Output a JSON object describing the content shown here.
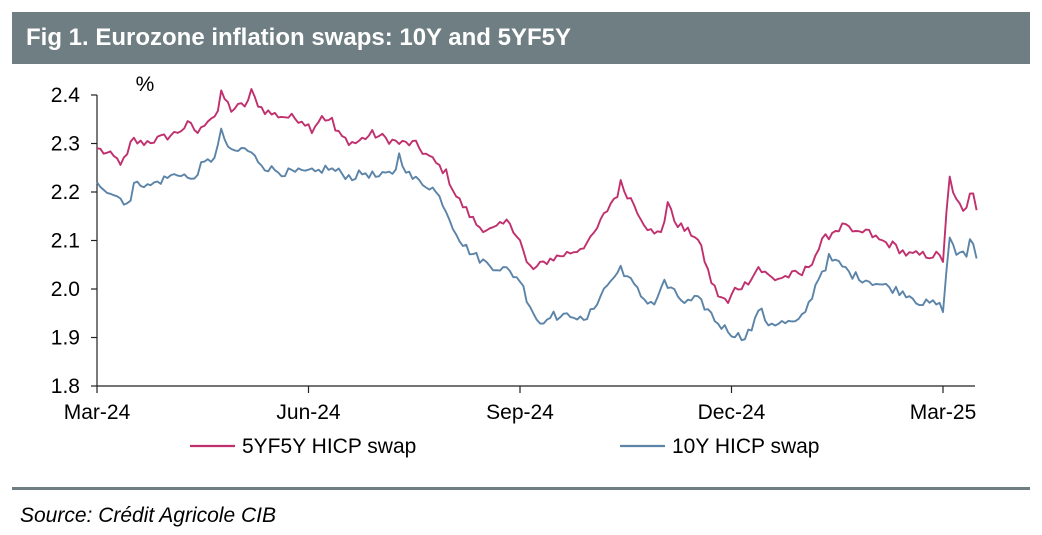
{
  "title": "Fig 1. Eurozone inflation swaps: 10Y and 5YF5Y",
  "source": "Source: Crédit Agricole CIB",
  "colors": {
    "title_bg": "#6e7e82",
    "series_5y5y": "#c0306e",
    "series_10y": "#5b84a8"
  },
  "chart_data": {
    "type": "line",
    "ylabel": "%",
    "ylim": [
      1.8,
      2.4
    ],
    "yticks": [
      "1.8",
      "1.9",
      "2.0",
      "2.1",
      "2.2",
      "2.3",
      "2.4"
    ],
    "xlim": [
      0,
      12.8
    ],
    "xticks": [
      {
        "label": "Mar-24",
        "x": 0
      },
      {
        "label": "Jun-24",
        "x": 3
      },
      {
        "label": "Sep-24",
        "x": 6
      },
      {
        "label": "Dec-24",
        "x": 9
      },
      {
        "label": "Mar-25",
        "x": 12
      }
    ],
    "legend": [
      "5YF5Y HICP swap",
      "10Y HICP swap"
    ],
    "series": [
      {
        "name": "5YF5Y HICP swap",
        "color": "#c0306e",
        "anchors": [
          [
            0,
            2.29
          ],
          [
            0.25,
            2.27
          ],
          [
            0.35,
            2.26
          ],
          [
            0.42,
            2.27
          ],
          [
            0.5,
            2.31
          ],
          [
            0.6,
            2.3
          ],
          [
            0.9,
            2.31
          ],
          [
            1.1,
            2.32
          ],
          [
            1.3,
            2.34
          ],
          [
            1.45,
            2.32
          ],
          [
            1.55,
            2.35
          ],
          [
            1.7,
            2.36
          ],
          [
            1.78,
            2.4
          ],
          [
            1.9,
            2.37
          ],
          [
            2.1,
            2.38
          ],
          [
            2.2,
            2.4
          ],
          [
            2.35,
            2.37
          ],
          [
            2.5,
            2.36
          ],
          [
            2.9,
            2.35
          ],
          [
            3.05,
            2.33
          ],
          [
            3.2,
            2.36
          ],
          [
            3.35,
            2.33
          ],
          [
            3.5,
            2.31
          ],
          [
            3.65,
            2.3
          ],
          [
            3.9,
            2.32
          ],
          [
            4.1,
            2.31
          ],
          [
            4.3,
            2.3
          ],
          [
            4.5,
            2.3
          ],
          [
            4.65,
            2.28
          ],
          [
            4.8,
            2.26
          ],
          [
            4.95,
            2.24
          ],
          [
            5.1,
            2.19
          ],
          [
            5.25,
            2.16
          ],
          [
            5.4,
            2.13
          ],
          [
            5.6,
            2.12
          ],
          [
            5.85,
            2.14
          ],
          [
            6.0,
            2.1
          ],
          [
            6.1,
            2.05
          ],
          [
            6.2,
            2.04
          ],
          [
            6.4,
            2.06
          ],
          [
            6.6,
            2.07
          ],
          [
            6.8,
            2.08
          ],
          [
            7.0,
            2.1
          ],
          [
            7.15,
            2.14
          ],
          [
            7.3,
            2.18
          ],
          [
            7.45,
            2.21
          ],
          [
            7.6,
            2.18
          ],
          [
            7.75,
            2.14
          ],
          [
            7.9,
            2.11
          ],
          [
            8.0,
            2.12
          ],
          [
            8.1,
            2.17
          ],
          [
            8.2,
            2.14
          ],
          [
            8.35,
            2.12
          ],
          [
            8.5,
            2.11
          ],
          [
            8.6,
            2.07
          ],
          [
            8.7,
            2.02
          ],
          [
            8.8,
            1.99
          ],
          [
            8.95,
            1.97
          ],
          [
            9.05,
            2.0
          ],
          [
            9.2,
            2.01
          ],
          [
            9.3,
            2.03
          ],
          [
            9.4,
            2.04
          ],
          [
            9.6,
            2.02
          ],
          [
            9.9,
            2.03
          ],
          [
            10.0,
            2.03
          ],
          [
            10.15,
            2.06
          ],
          [
            10.3,
            2.1
          ],
          [
            10.45,
            2.12
          ],
          [
            10.6,
            2.13
          ],
          [
            10.75,
            2.11
          ],
          [
            10.9,
            2.12
          ],
          [
            11.1,
            2.1
          ],
          [
            11.3,
            2.09
          ],
          [
            11.5,
            2.07
          ],
          [
            11.7,
            2.07
          ],
          [
            11.9,
            2.07
          ],
          [
            12.0,
            2.06
          ],
          [
            12.08,
            2.23
          ],
          [
            12.15,
            2.19
          ],
          [
            12.25,
            2.17
          ],
          [
            12.35,
            2.16
          ],
          [
            12.4,
            2.21
          ],
          [
            12.48,
            2.16
          ]
        ],
        "spikes": [
          [
            1.78,
            0.01
          ],
          [
            2.2,
            0.008
          ],
          [
            3.35,
            0.02
          ],
          [
            7.45,
            0.012
          ],
          [
            8.1,
            0.012
          ],
          [
            9.4,
            0.008
          ],
          [
            10.6,
            0.01
          ],
          [
            12.08,
            0.004
          ]
        ]
      },
      {
        "name": "10Y HICP swap",
        "color": "#5b84a8",
        "anchors": [
          [
            0,
            2.22
          ],
          [
            0.2,
            2.2
          ],
          [
            0.4,
            2.18
          ],
          [
            0.48,
            2.18
          ],
          [
            0.55,
            2.23
          ],
          [
            0.7,
            2.21
          ],
          [
            1.0,
            2.23
          ],
          [
            1.2,
            2.24
          ],
          [
            1.35,
            2.22
          ],
          [
            1.45,
            2.25
          ],
          [
            1.65,
            2.27
          ],
          [
            1.78,
            2.32
          ],
          [
            1.9,
            2.28
          ],
          [
            2.1,
            2.29
          ],
          [
            2.25,
            2.27
          ],
          [
            2.4,
            2.25
          ],
          [
            2.65,
            2.24
          ],
          [
            2.9,
            2.24
          ],
          [
            3.1,
            2.24
          ],
          [
            3.25,
            2.25
          ],
          [
            3.45,
            2.24
          ],
          [
            3.6,
            2.23
          ],
          [
            3.8,
            2.24
          ],
          [
            4.0,
            2.23
          ],
          [
            4.2,
            2.24
          ],
          [
            4.3,
            2.27
          ],
          [
            4.45,
            2.23
          ],
          [
            4.6,
            2.22
          ],
          [
            4.75,
            2.21
          ],
          [
            4.9,
            2.18
          ],
          [
            5.05,
            2.13
          ],
          [
            5.2,
            2.09
          ],
          [
            5.35,
            2.07
          ],
          [
            5.55,
            2.05
          ],
          [
            5.8,
            2.04
          ],
          [
            6.0,
            2.02
          ],
          [
            6.1,
            1.98
          ],
          [
            6.2,
            1.95
          ],
          [
            6.3,
            1.92
          ],
          [
            6.4,
            1.95
          ],
          [
            6.6,
            1.94
          ],
          [
            6.75,
            1.95
          ],
          [
            6.9,
            1.93
          ],
          [
            7.0,
            1.95
          ],
          [
            7.15,
            1.99
          ],
          [
            7.3,
            2.02
          ],
          [
            7.45,
            2.04
          ],
          [
            7.6,
            2.01
          ],
          [
            7.75,
            1.98
          ],
          [
            7.9,
            1.97
          ],
          [
            8.05,
            2.01
          ],
          [
            8.2,
            1.99
          ],
          [
            8.35,
            1.97
          ],
          [
            8.5,
            1.98
          ],
          [
            8.65,
            1.96
          ],
          [
            8.8,
            1.93
          ],
          [
            9.0,
            1.91
          ],
          [
            9.15,
            1.9
          ],
          [
            9.3,
            1.92
          ],
          [
            9.4,
            1.96
          ],
          [
            9.5,
            1.93
          ],
          [
            9.7,
            1.93
          ],
          [
            9.95,
            1.93
          ],
          [
            10.1,
            1.97
          ],
          [
            10.25,
            2.03
          ],
          [
            10.4,
            2.06
          ],
          [
            10.55,
            2.05
          ],
          [
            10.7,
            2.03
          ],
          [
            10.9,
            2.02
          ],
          [
            11.1,
            2.01
          ],
          [
            11.3,
            2.0
          ],
          [
            11.5,
            1.99
          ],
          [
            11.7,
            1.97
          ],
          [
            11.9,
            1.97
          ],
          [
            12.0,
            1.96
          ],
          [
            12.1,
            2.11
          ],
          [
            12.2,
            2.07
          ],
          [
            12.35,
            2.07
          ],
          [
            12.4,
            2.12
          ],
          [
            12.48,
            2.06
          ]
        ],
        "spikes": [
          [
            1.78,
            0.01
          ],
          [
            4.3,
            0.01
          ],
          [
            6.3,
            0.006
          ],
          [
            7.45,
            0.01
          ],
          [
            8.05,
            0.01
          ],
          [
            9.4,
            0.008
          ],
          [
            10.4,
            0.008
          ],
          [
            12.1,
            0.004
          ]
        ]
      }
    ]
  }
}
